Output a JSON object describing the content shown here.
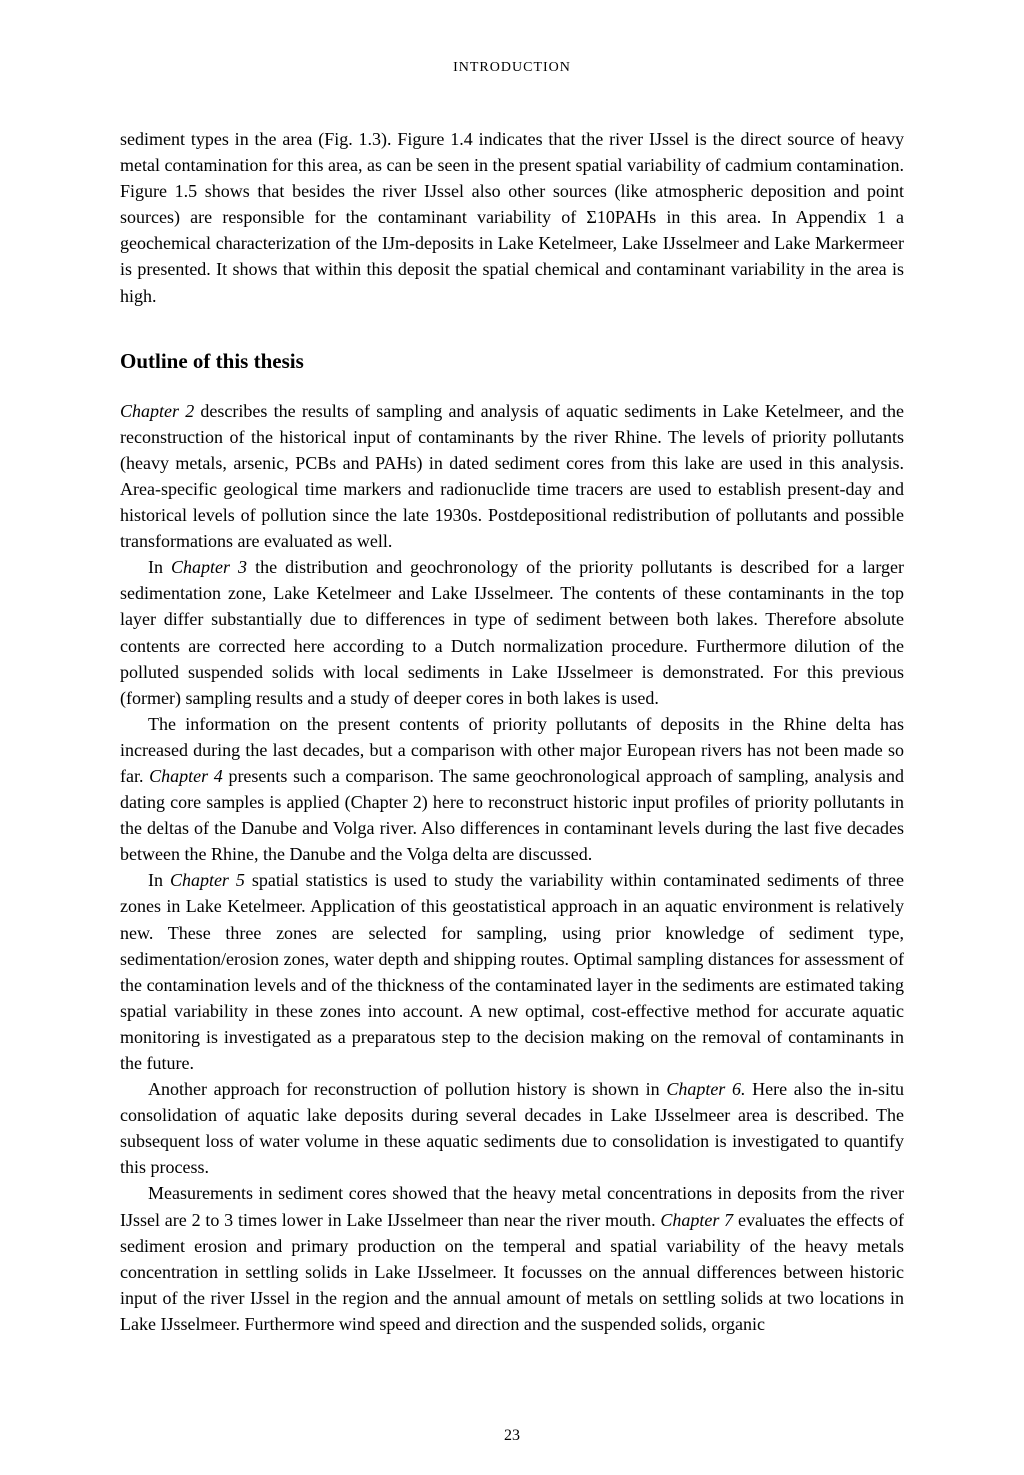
{
  "header": "INTRODUCTION",
  "para1_pre": "sediment types in the area (Fig. 1.3). Figure 1.4 indicates that the river IJssel is the direct source of heavy metal contamination for this area, as can be seen in the present spatial variability of cadmium contamination. Figure 1.5 shows that besides the river IJssel also other sources (like atmospheric deposition and point sources) are responsible for the contaminant variability of ",
  "sigma": "Σ10PAHs",
  "para1_post": " in this area. In Appendix 1 a geochemical characterization of the IJm-deposits in Lake Ketelmeer, Lake IJsselmeer and Lake Markermeer is presented. It shows that within this deposit the spatial chemical and contaminant variability in the area is high.",
  "section_heading": "Outline of this thesis",
  "p2_ch": "Chapter 2",
  "p2_text": " describes the results of sampling and analysis of aquatic sediments in Lake Ketelmeer, and the reconstruction of the historical input of contaminants by the river Rhine. The levels of priority pollutants (heavy metals, arsenic, PCBs and PAHs) in dated sediment cores from this lake are used in this analysis. Area-specific geological time markers and radionuclide time tracers are used to establish present-day and historical levels of pollution since the late 1930s. Postdepositional redistribution of pollutants and possible transformations are evaluated as well.",
  "p3_pre": "In ",
  "p3_ch": "Chapter 3",
  "p3_text": " the distribution and geochronology of the priority pollutants is described for a larger sedimentation zone, Lake Ketelmeer and Lake IJsselmeer. The contents of these contaminants in the top layer differ substantially due to differences in type of sediment between both lakes. Therefore absolute contents are corrected here according to a Dutch normalization procedure. Furthermore dilution of the polluted suspended solids with local sediments in Lake IJsselmeer is demonstrated. For this previous (former) sampling results and a study of deeper cores in both lakes is used.",
  "p4_pre": "The information on the present contents of priority pollutants of deposits in the Rhine delta has increased during the last decades, but a comparison with other major European rivers has not been made so far. ",
  "p4_ch": "Chapter 4",
  "p4_text": " presents such a comparison. The same geochronological approach of sampling, analysis and dating core samples is applied (Chapter 2) here to reconstruct historic input profiles of priority pollutants in the deltas of the Danube and Volga river. Also differences in contaminant levels during the last five decades between the Rhine, the Danube and the Volga delta are discussed.",
  "p5_pre": "In ",
  "p5_ch": "Chapter 5",
  "p5_text": " spatial statistics is used to study the variability within contaminated sediments of three zones in Lake Ketelmeer. Application of this geostatistical approach in an aquatic environment is relatively new. These three zones are selected for sampling, using prior knowledge of sediment type, sedimentation/erosion zones, water depth and shipping routes. Optimal sampling distances for assessment of the contamination levels and of the thickness of the contaminated layer in the sediments are estimated taking spatial variability in these zones into account. A new optimal, cost-effective method for accurate aquatic monitoring is investigated as a preparatous step to the decision making on the removal of contaminants in the future.",
  "p6_pre": "Another approach for reconstruction of pollution history is shown in ",
  "p6_ch": "Chapter 6.",
  "p6_text": " Here also the in-situ consolidation of aquatic lake deposits during several decades in Lake IJsselmeer area is described. The subsequent loss of water volume in these aquatic sediments due to consolidation is investigated to quantify this process.",
  "p7_pre": "Measurements in sediment cores showed that the heavy metal concentrations in deposits from the river IJssel are 2 to 3 times lower in Lake IJsselmeer than near the river mouth. ",
  "p7_ch": "Chapter 7",
  "p7_text": " evaluates the effects of sediment erosion and primary production on the temperal and spatial variability of the heavy metals concentration in settling solids in Lake IJsselmeer. It focusses on the annual differences between historic input of the river IJssel in the region and the annual amount of metals on settling solids at two locations in Lake IJsselmeer. Furthermore wind speed and direction and the suspended solids, organic",
  "page_number": "23"
}
